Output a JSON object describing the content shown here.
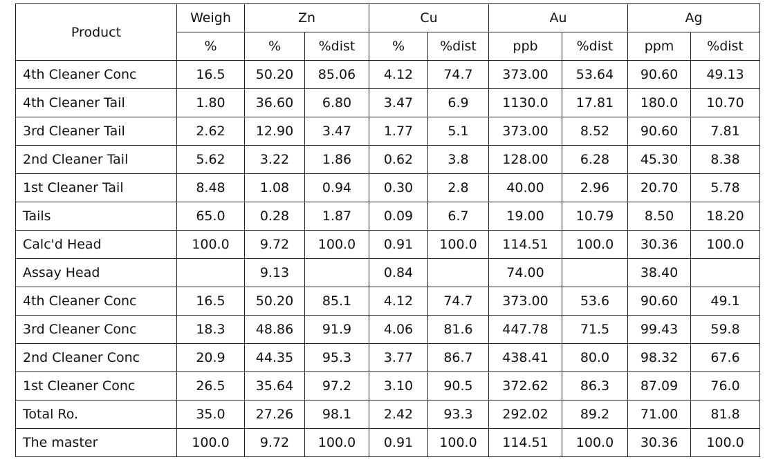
{
  "table": {
    "header": {
      "product": "Product",
      "groups": [
        {
          "label": "Weigh",
          "span": 1
        },
        {
          "label": "Zn",
          "span": 2
        },
        {
          "label": "Cu",
          "span": 2
        },
        {
          "label": "Au",
          "span": 2
        },
        {
          "label": "Ag",
          "span": 2
        }
      ],
      "units": [
        "%",
        "%",
        "%dist",
        "%",
        "%dist",
        "ppb",
        "%dist",
        "ppm",
        "%dist"
      ]
    },
    "rows": [
      [
        "4th Cleaner Conc",
        "16.5",
        "50.20",
        "85.06",
        "4.12",
        "74.7",
        "373.00",
        "53.64",
        "90.60",
        "49.13"
      ],
      [
        "4th Cleaner Tail",
        "1.80",
        "36.60",
        "6.80",
        "3.47",
        "6.9",
        "1130.0",
        "17.81",
        "180.0",
        "10.70"
      ],
      [
        "3rd Cleaner Tail",
        "2.62",
        "12.90",
        "3.47",
        "1.77",
        "5.1",
        "373.00",
        "8.52",
        "90.60",
        "7.81"
      ],
      [
        "2nd Cleaner Tail",
        "5.62",
        "3.22",
        "1.86",
        "0.62",
        "3.8",
        "128.00",
        "6.28",
        "45.30",
        "8.38"
      ],
      [
        "1st Cleaner Tail",
        "8.48",
        "1.08",
        "0.94",
        "0.30",
        "2.8",
        "40.00",
        "2.96",
        "20.70",
        "5.78"
      ],
      [
        "Tails",
        "65.0",
        "0.28",
        "1.87",
        "0.09",
        "6.7",
        "19.00",
        "10.79",
        "8.50",
        "18.20"
      ],
      [
        "Calc'd Head",
        "100.0",
        "9.72",
        "100.0",
        "0.91",
        "100.0",
        "114.51",
        "100.0",
        "30.36",
        "100.0"
      ],
      [
        "Assay Head",
        null,
        "9.13",
        null,
        "0.84",
        null,
        "74.00",
        null,
        "38.40",
        null
      ],
      [
        "4th Cleaner Conc",
        "16.5",
        "50.20",
        "85.1",
        "4.12",
        "74.7",
        "373.00",
        "53.6",
        "90.60",
        "49.1"
      ],
      [
        "3rd Cleaner Conc",
        "18.3",
        "48.86",
        "91.9",
        "4.06",
        "81.6",
        "447.78",
        "71.5",
        "99.43",
        "59.8"
      ],
      [
        "2nd Cleaner Conc",
        "20.9",
        "44.35",
        "95.3",
        "3.77",
        "86.7",
        "438.41",
        "80.0",
        "98.32",
        "67.6"
      ],
      [
        "1st Cleaner Conc",
        "26.5",
        "35.64",
        "97.2",
        "3.10",
        "90.5",
        "372.62",
        "86.3",
        "87.09",
        "76.0"
      ],
      [
        "Total Ro.",
        "35.0",
        "27.26",
        "98.1",
        "2.42",
        "93.3",
        "292.02",
        "89.2",
        "71.00",
        "81.8"
      ],
      [
        "The master",
        "100.0",
        "9.72",
        "100.0",
        "0.91",
        "100.0",
        "114.51",
        "100.0",
        "30.36",
        "100.0"
      ]
    ]
  }
}
